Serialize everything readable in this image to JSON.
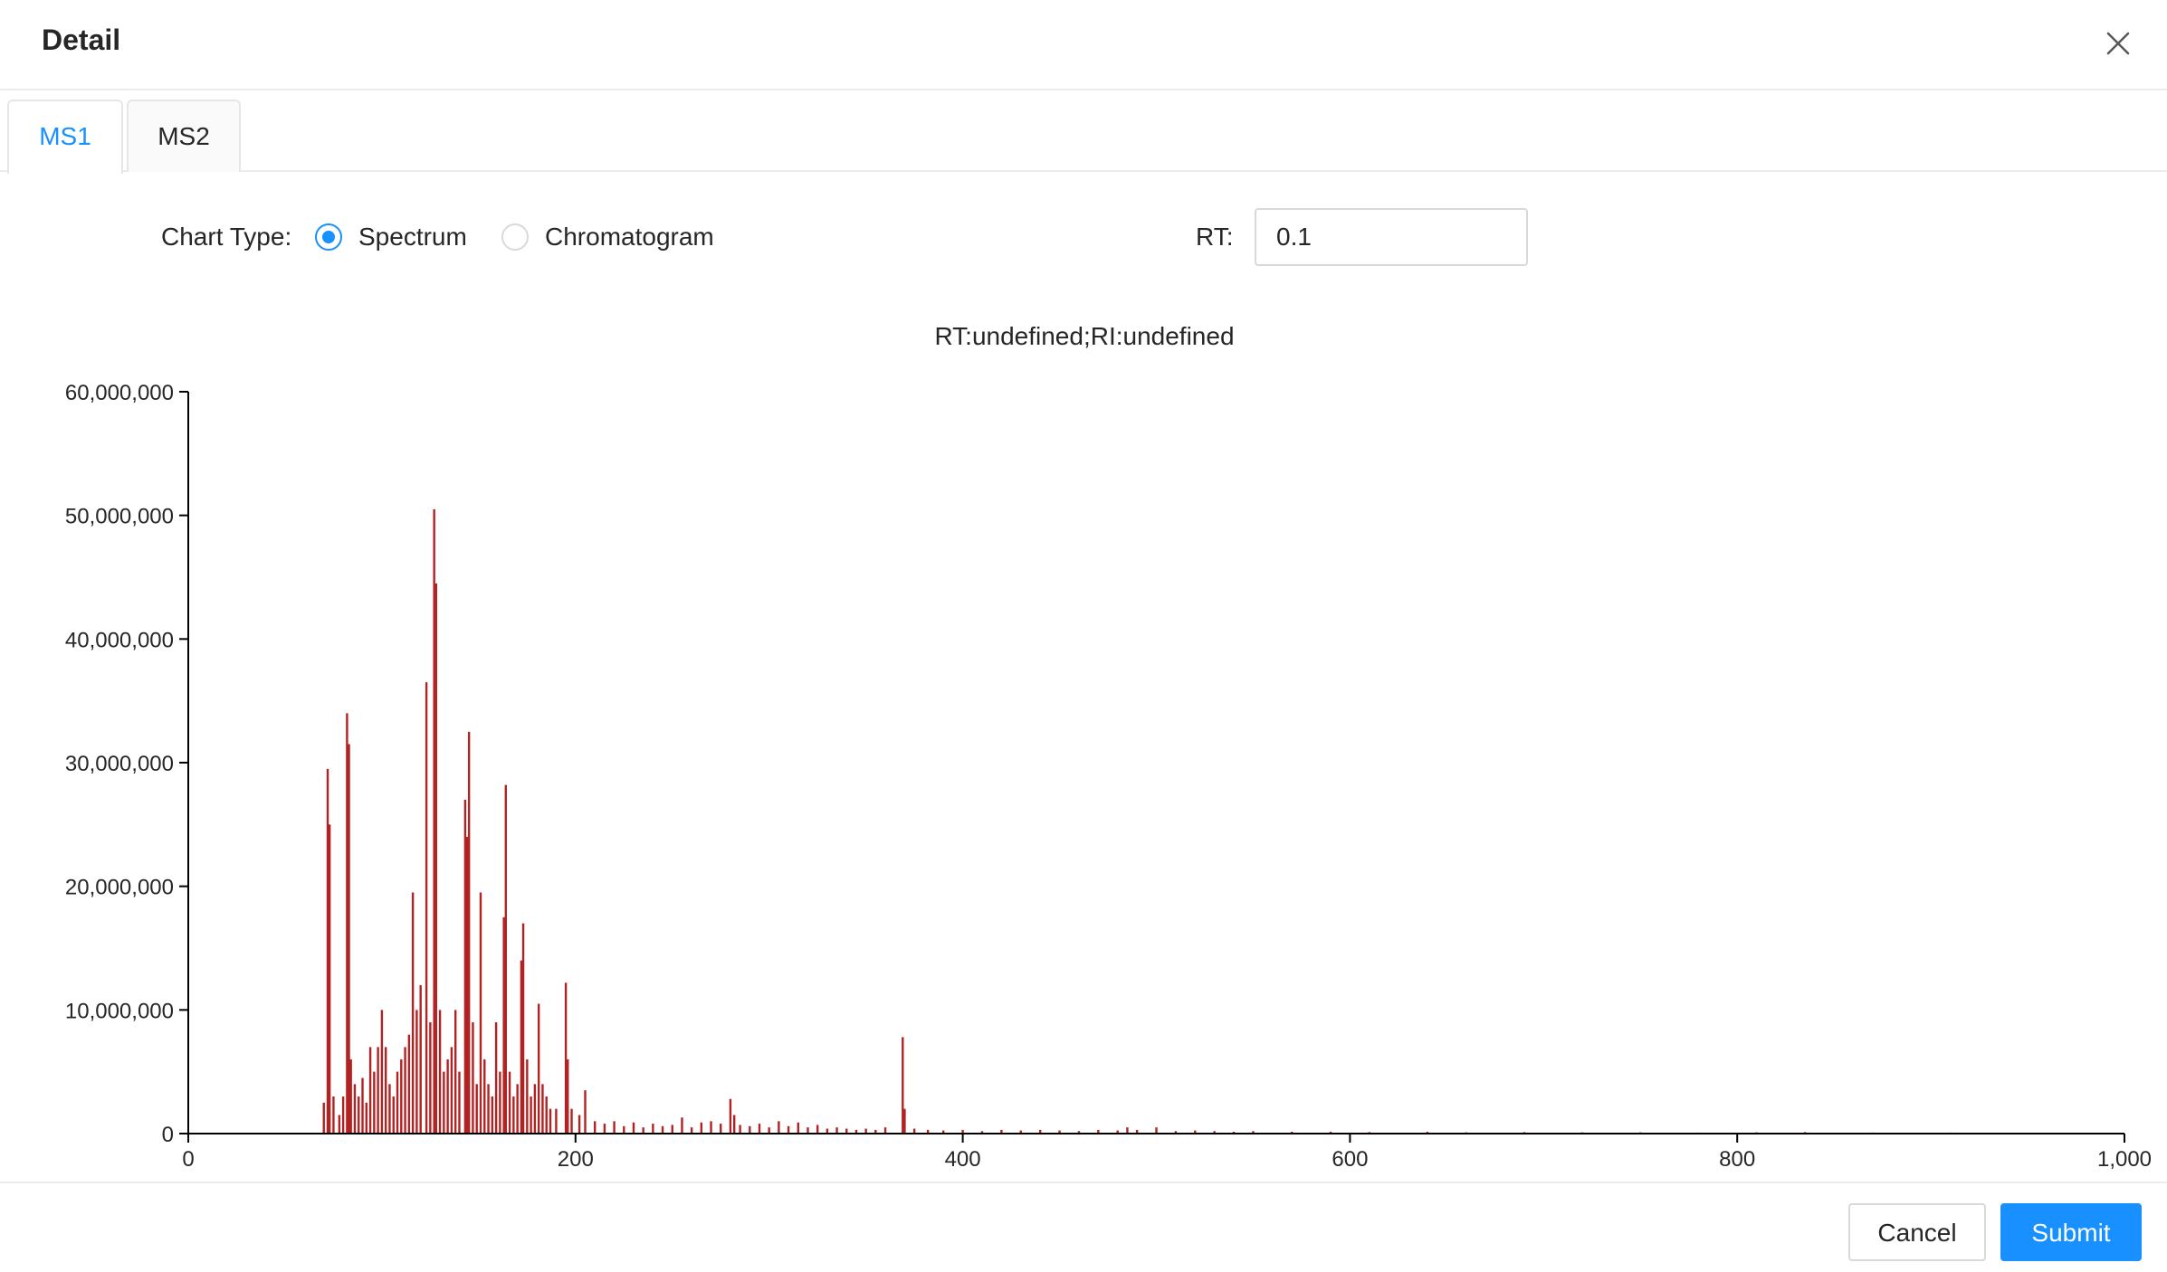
{
  "dialog": {
    "title": "Detail",
    "close_icon": "close-icon"
  },
  "tabs": [
    {
      "label": "MS1",
      "active": true
    },
    {
      "label": "MS2",
      "active": false
    }
  ],
  "form": {
    "chart_type_label": "Chart Type",
    "options": [
      {
        "label": "Spectrum",
        "checked": true
      },
      {
        "label": "Chromatogram",
        "checked": false
      }
    ],
    "rt_label": "RT",
    "rt_value": "0.1"
  },
  "footer": {
    "cancel_label": "Cancel",
    "submit_label": "Submit"
  },
  "colors": {
    "accent": "#1890ff",
    "spectrum": "#b22222"
  },
  "chart_data": {
    "type": "bar",
    "title": "RT:undefined;RI:undefined",
    "xlabel": "",
    "ylabel": "",
    "xlim": [
      0,
      1000
    ],
    "ylim": [
      0,
      60000000
    ],
    "x_ticks": [
      0,
      200,
      400,
      600,
      800,
      1000
    ],
    "x_tick_labels": [
      "0",
      "200",
      "400",
      "600",
      "800",
      "1,000"
    ],
    "y_ticks": [
      0,
      10000000,
      20000000,
      30000000,
      40000000,
      50000000,
      60000000
    ],
    "y_tick_labels": [
      "0",
      "10,000,000",
      "20,000,000",
      "30,000,000",
      "40,000,000",
      "50,000,000",
      "60,000,000"
    ],
    "grid": false,
    "peaks": [
      {
        "x": 70,
        "y": 2500000
      },
      {
        "x": 72,
        "y": 29500000
      },
      {
        "x": 73,
        "y": 25000000
      },
      {
        "x": 75,
        "y": 3000000
      },
      {
        "x": 78,
        "y": 1500000
      },
      {
        "x": 80,
        "y": 3000000
      },
      {
        "x": 82,
        "y": 34000000
      },
      {
        "x": 83,
        "y": 31500000
      },
      {
        "x": 84,
        "y": 6000000
      },
      {
        "x": 86,
        "y": 4000000
      },
      {
        "x": 88,
        "y": 3000000
      },
      {
        "x": 90,
        "y": 4500000
      },
      {
        "x": 92,
        "y": 2500000
      },
      {
        "x": 94,
        "y": 7000000
      },
      {
        "x": 96,
        "y": 5000000
      },
      {
        "x": 98,
        "y": 7000000
      },
      {
        "x": 100,
        "y": 10000000
      },
      {
        "x": 102,
        "y": 7000000
      },
      {
        "x": 104,
        "y": 4000000
      },
      {
        "x": 106,
        "y": 3000000
      },
      {
        "x": 108,
        "y": 5000000
      },
      {
        "x": 110,
        "y": 6000000
      },
      {
        "x": 112,
        "y": 7000000
      },
      {
        "x": 114,
        "y": 8000000
      },
      {
        "x": 116,
        "y": 19500000
      },
      {
        "x": 118,
        "y": 10000000
      },
      {
        "x": 120,
        "y": 12000000
      },
      {
        "x": 123,
        "y": 36500000
      },
      {
        "x": 125,
        "y": 9000000
      },
      {
        "x": 127,
        "y": 50500000
      },
      {
        "x": 128,
        "y": 44500000
      },
      {
        "x": 130,
        "y": 10000000
      },
      {
        "x": 132,
        "y": 5000000
      },
      {
        "x": 134,
        "y": 6000000
      },
      {
        "x": 136,
        "y": 7000000
      },
      {
        "x": 138,
        "y": 10000000
      },
      {
        "x": 140,
        "y": 5000000
      },
      {
        "x": 143,
        "y": 27000000
      },
      {
        "x": 144,
        "y": 24000000
      },
      {
        "x": 145,
        "y": 32500000
      },
      {
        "x": 147,
        "y": 9000000
      },
      {
        "x": 149,
        "y": 4000000
      },
      {
        "x": 151,
        "y": 19500000
      },
      {
        "x": 153,
        "y": 6000000
      },
      {
        "x": 155,
        "y": 4000000
      },
      {
        "x": 157,
        "y": 3000000
      },
      {
        "x": 159,
        "y": 9000000
      },
      {
        "x": 161,
        "y": 5000000
      },
      {
        "x": 163,
        "y": 17500000
      },
      {
        "x": 164,
        "y": 28200000
      },
      {
        "x": 166,
        "y": 5000000
      },
      {
        "x": 168,
        "y": 3000000
      },
      {
        "x": 170,
        "y": 4000000
      },
      {
        "x": 172,
        "y": 14000000
      },
      {
        "x": 173,
        "y": 17000000
      },
      {
        "x": 175,
        "y": 6000000
      },
      {
        "x": 177,
        "y": 3000000
      },
      {
        "x": 179,
        "y": 4000000
      },
      {
        "x": 181,
        "y": 10500000
      },
      {
        "x": 183,
        "y": 4000000
      },
      {
        "x": 185,
        "y": 3000000
      },
      {
        "x": 187,
        "y": 2000000
      },
      {
        "x": 190,
        "y": 2000000
      },
      {
        "x": 195,
        "y": 12200000
      },
      {
        "x": 196,
        "y": 6000000
      },
      {
        "x": 198,
        "y": 2000000
      },
      {
        "x": 202,
        "y": 1500000
      },
      {
        "x": 205,
        "y": 3500000
      },
      {
        "x": 210,
        "y": 1000000
      },
      {
        "x": 215,
        "y": 800000
      },
      {
        "x": 220,
        "y": 1000000
      },
      {
        "x": 225,
        "y": 600000
      },
      {
        "x": 230,
        "y": 900000
      },
      {
        "x": 235,
        "y": 500000
      },
      {
        "x": 240,
        "y": 800000
      },
      {
        "x": 245,
        "y": 600000
      },
      {
        "x": 250,
        "y": 700000
      },
      {
        "x": 255,
        "y": 1300000
      },
      {
        "x": 260,
        "y": 500000
      },
      {
        "x": 265,
        "y": 900000
      },
      {
        "x": 270,
        "y": 1000000
      },
      {
        "x": 275,
        "y": 800000
      },
      {
        "x": 280,
        "y": 2800000
      },
      {
        "x": 282,
        "y": 1500000
      },
      {
        "x": 285,
        "y": 700000
      },
      {
        "x": 290,
        "y": 600000
      },
      {
        "x": 295,
        "y": 800000
      },
      {
        "x": 300,
        "y": 500000
      },
      {
        "x": 305,
        "y": 1000000
      },
      {
        "x": 310,
        "y": 600000
      },
      {
        "x": 315,
        "y": 900000
      },
      {
        "x": 320,
        "y": 500000
      },
      {
        "x": 325,
        "y": 700000
      },
      {
        "x": 330,
        "y": 400000
      },
      {
        "x": 335,
        "y": 500000
      },
      {
        "x": 340,
        "y": 400000
      },
      {
        "x": 345,
        "y": 300000
      },
      {
        "x": 350,
        "y": 400000
      },
      {
        "x": 355,
        "y": 300000
      },
      {
        "x": 360,
        "y": 500000
      },
      {
        "x": 369,
        "y": 7800000
      },
      {
        "x": 370,
        "y": 2000000
      },
      {
        "x": 375,
        "y": 400000
      },
      {
        "x": 382,
        "y": 300000
      },
      {
        "x": 390,
        "y": 250000
      },
      {
        "x": 400,
        "y": 300000
      },
      {
        "x": 410,
        "y": 200000
      },
      {
        "x": 420,
        "y": 300000
      },
      {
        "x": 430,
        "y": 250000
      },
      {
        "x": 440,
        "y": 300000
      },
      {
        "x": 450,
        "y": 250000
      },
      {
        "x": 460,
        "y": 200000
      },
      {
        "x": 470,
        "y": 300000
      },
      {
        "x": 480,
        "y": 250000
      },
      {
        "x": 485,
        "y": 500000
      },
      {
        "x": 490,
        "y": 300000
      },
      {
        "x": 500,
        "y": 500000
      },
      {
        "x": 510,
        "y": 200000
      },
      {
        "x": 520,
        "y": 250000
      },
      {
        "x": 530,
        "y": 200000
      },
      {
        "x": 540,
        "y": 150000
      },
      {
        "x": 550,
        "y": 200000
      },
      {
        "x": 570,
        "y": 150000
      },
      {
        "x": 590,
        "y": 150000
      },
      {
        "x": 610,
        "y": 120000
      },
      {
        "x": 640,
        "y": 150000
      },
      {
        "x": 660,
        "y": 100000
      },
      {
        "x": 690,
        "y": 120000
      },
      {
        "x": 720,
        "y": 100000
      },
      {
        "x": 750,
        "y": 100000
      },
      {
        "x": 780,
        "y": 80000
      },
      {
        "x": 810,
        "y": 100000
      },
      {
        "x": 835,
        "y": 120000
      },
      {
        "x": 870,
        "y": 80000
      },
      {
        "x": 910,
        "y": 80000
      },
      {
        "x": 950,
        "y": 60000
      }
    ]
  }
}
